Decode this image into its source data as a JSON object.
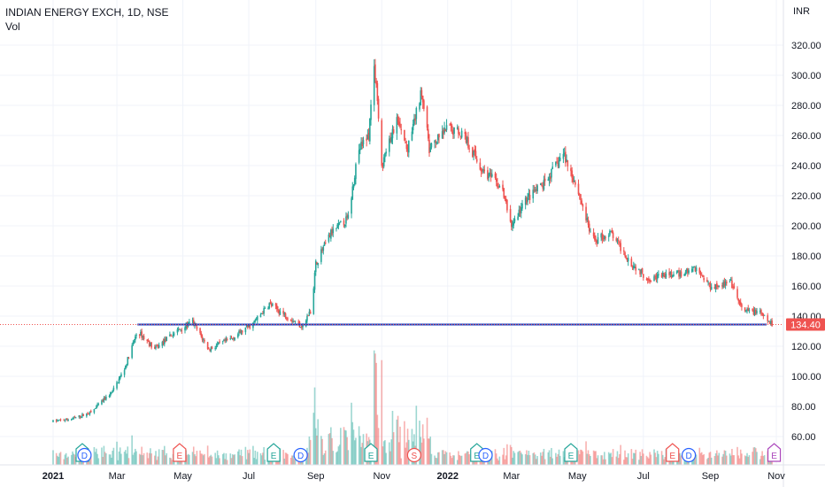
{
  "header": {
    "symbol_line": "INDIAN ENERGY EXCH, 1D, NSE",
    "indicator": "Vol"
  },
  "axis": {
    "currency": "INR",
    "last_price": "134.40"
  },
  "colors": {
    "up": "#26a69a",
    "down": "#ef5350",
    "support_line": "#1e3fbf",
    "last_price_bg": "#ef5350",
    "grid": "#f0f3fa",
    "text": "#131722"
  },
  "chart_data": {
    "type": "candlestick",
    "title": "INDIAN ENERGY EXCH, 1D, NSE",
    "ylabel": "INR",
    "ylim": [
      40,
      330
    ],
    "y_ticks": [
      "320.00",
      "300.00",
      "280.00",
      "260.00",
      "240.00",
      "220.00",
      "200.00",
      "180.00",
      "160.00",
      "140.00",
      "120.00",
      "100.00",
      "80.00",
      "60.00"
    ],
    "x_ticks": [
      "2021",
      "Mar",
      "May",
      "Jul",
      "Sep",
      "Nov",
      "2022",
      "Mar",
      "May",
      "Jul",
      "Sep",
      "Nov"
    ],
    "price_path": [
      [
        "2021-01-01",
        70
      ],
      [
        "2021-01-20",
        72
      ],
      [
        "2021-02-05",
        76
      ],
      [
        "2021-02-25",
        90
      ],
      [
        "2021-03-08",
        105
      ],
      [
        "2021-03-20",
        130
      ],
      [
        "2021-04-05",
        118
      ],
      [
        "2021-04-25",
        130
      ],
      [
        "2021-05-10",
        136
      ],
      [
        "2021-05-25",
        118
      ],
      [
        "2021-06-15",
        125
      ],
      [
        "2021-07-05",
        135
      ],
      [
        "2021-07-20",
        148
      ],
      [
        "2021-08-05",
        140
      ],
      [
        "2021-08-20",
        133
      ],
      [
        "2021-08-28",
        145
      ],
      [
        "2021-09-01",
        175
      ],
      [
        "2021-09-15",
        195
      ],
      [
        "2021-10-01",
        205
      ],
      [
        "2021-10-10",
        250
      ],
      [
        "2021-10-20",
        260
      ],
      [
        "2021-10-25",
        310
      ],
      [
        "2021-11-01",
        240
      ],
      [
        "2021-11-15",
        270
      ],
      [
        "2021-11-25",
        250
      ],
      [
        "2021-12-08",
        290
      ],
      [
        "2021-12-15",
        250
      ],
      [
        "2022-01-01",
        265
      ],
      [
        "2022-01-15",
        262
      ],
      [
        "2022-02-01",
        238
      ],
      [
        "2022-02-20",
        225
      ],
      [
        "2022-03-01",
        200
      ],
      [
        "2022-03-15",
        218
      ],
      [
        "2022-04-01",
        228
      ],
      [
        "2022-04-18",
        248
      ],
      [
        "2022-05-01",
        225
      ],
      [
        "2022-05-15",
        190
      ],
      [
        "2022-06-01",
        195
      ],
      [
        "2022-06-20",
        175
      ],
      [
        "2022-07-05",
        165
      ],
      [
        "2022-07-20",
        167
      ],
      [
        "2022-08-05",
        168
      ],
      [
        "2022-08-18",
        172
      ],
      [
        "2022-09-01",
        160
      ],
      [
        "2022-09-20",
        162
      ],
      [
        "2022-10-01",
        143
      ],
      [
        "2022-10-15",
        143
      ],
      [
        "2022-10-28",
        134.4
      ]
    ],
    "support_level": 134.4,
    "last_price": 134.4,
    "events": [
      {
        "date": "2021-01-28",
        "label": "E",
        "kind": "earnings"
      },
      {
        "date": "2021-01-30",
        "label": "D",
        "kind": "dividend"
      },
      {
        "date": "2021-04-28",
        "label": "E",
        "kind": "earnings"
      },
      {
        "date": "2021-07-24",
        "label": "E",
        "kind": "earnings"
      },
      {
        "date": "2021-08-18",
        "label": "D",
        "kind": "dividend"
      },
      {
        "date": "2021-10-22",
        "label": "E",
        "kind": "earnings"
      },
      {
        "date": "2021-12-01",
        "label": "S",
        "kind": "split"
      },
      {
        "date": "2022-01-28",
        "label": "E",
        "kind": "earnings"
      },
      {
        "date": "2022-02-05",
        "label": "D",
        "kind": "dividend"
      },
      {
        "date": "2022-04-25",
        "label": "E",
        "kind": "earnings"
      },
      {
        "date": "2022-07-28",
        "label": "E",
        "kind": "earnings"
      },
      {
        "date": "2022-08-12",
        "label": "D",
        "kind": "dividend"
      },
      {
        "date": "2022-10-30",
        "label": "E",
        "kind": "earnings-upcoming"
      }
    ]
  }
}
